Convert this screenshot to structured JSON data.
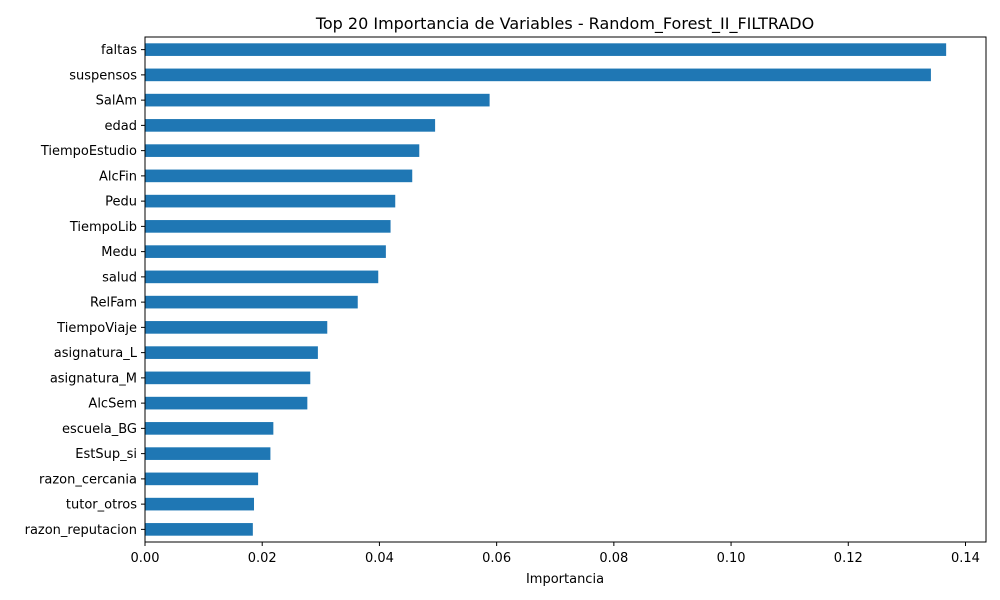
{
  "chart_data": {
    "type": "bar",
    "orientation": "horizontal",
    "title": "Top 20 Importancia de Variables - Random_Forest_II_FILTRADO",
    "xlabel": "Importancia",
    "ylabel": "",
    "xlim": [
      0.0,
      0.1435
    ],
    "xticks": [
      0.0,
      0.02,
      0.04,
      0.06,
      0.08,
      0.1,
      0.12,
      0.14
    ],
    "xtick_labels": [
      "0.00",
      "0.02",
      "0.04",
      "0.06",
      "0.08",
      "0.10",
      "0.12",
      "0.14"
    ],
    "grid": false,
    "categories": [
      "faltas",
      "suspensos",
      "SalAm",
      "edad",
      "TiempoEstudio",
      "AlcFin",
      "Pedu",
      "TiempoLib",
      "Medu",
      "salud",
      "RelFam",
      "TiempoViaje",
      "asignatura_L",
      "asignatura_M",
      "AlcSem",
      "escuela_BG",
      "EstSup_si",
      "razon_cercania",
      "tutor_otros",
      "razon_reputacion"
    ],
    "values": [
      0.1367,
      0.1341,
      0.0588,
      0.0495,
      0.0468,
      0.0456,
      0.0427,
      0.0419,
      0.0411,
      0.0398,
      0.0363,
      0.0311,
      0.0295,
      0.0282,
      0.0277,
      0.0219,
      0.0214,
      0.0193,
      0.0186,
      0.0184
    ],
    "bar_color": "#1f77b4"
  }
}
